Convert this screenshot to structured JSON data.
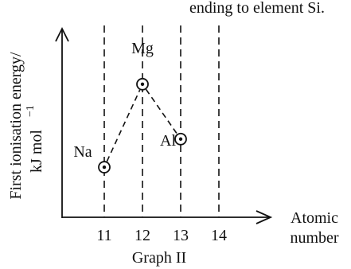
{
  "header_fragment": "ending to element Si.",
  "chart_data": {
    "type": "scatter",
    "title": "Graph II",
    "xlabel": "Atomic number",
    "ylabel": "First ionisation energy/ kJ mol⁻¹",
    "ylabel_line1": "First ionisation energy/",
    "ylabel_line2": "kJ mol",
    "ylabel_sup": "−1",
    "xlabel_line1": "Atomic",
    "xlabel_line2": "number",
    "x_ticks": [
      "11",
      "12",
      "13",
      "14"
    ],
    "series": [
      {
        "points": [
          {
            "x": 11,
            "y": 496,
            "label": "Na"
          },
          {
            "x": 12,
            "y": 738,
            "label": "Mg"
          },
          {
            "x": 13,
            "y": 578,
            "label": "Al"
          }
        ]
      }
    ],
    "dashed_verticals_at": [
      11,
      12,
      13,
      14
    ],
    "connect_points": "dashed",
    "y_range": [
      350,
      900
    ],
    "grid": false
  }
}
